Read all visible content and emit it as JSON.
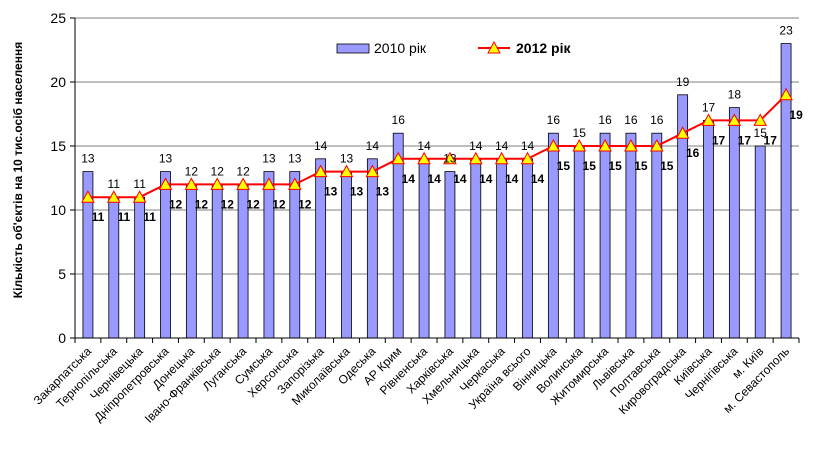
{
  "chart_data": {
    "type": "bar",
    "ylabel": "Кількість об'єктів на 10 тис.осіб населення",
    "ylim": [
      0,
      25
    ],
    "yticks": [
      0,
      5,
      10,
      15,
      20,
      25
    ],
    "grid": true,
    "legend_position": "top",
    "categories": [
      "Закарпатська",
      "Тернопільська",
      "Чернівецька",
      "Дніпропетровська",
      "Донецька",
      "Івано-Франківська",
      "Луганська",
      "Сумська",
      "Херсонська",
      "Запорізька",
      "Миколаївська",
      "Одеська",
      "АР Крим",
      "Рівненська",
      "Харківська",
      "Хмельницька",
      "Черкаська",
      "Україна всього",
      "Вінницька",
      "Волинська",
      "Житомирська",
      "Львівська",
      "Полтавська",
      "Кировоградська",
      "Київська",
      "Чернігівська",
      "м. Київ",
      "м. Севастополь"
    ],
    "series": [
      {
        "name": "2010 рік",
        "type": "bar",
        "color": "#9999ff",
        "values": [
          13,
          11,
          11,
          13,
          12,
          12,
          12,
          13,
          13,
          14,
          13,
          14,
          16,
          14,
          13,
          14,
          14,
          14,
          16,
          15,
          16,
          16,
          16,
          19,
          17,
          18,
          15,
          23
        ]
      },
      {
        "name": "2012 рік",
        "type": "line",
        "color": "#ff0000",
        "marker_color": "#ffff00",
        "values": [
          11,
          11,
          11,
          12,
          12,
          12,
          12,
          12,
          12,
          13,
          13,
          13,
          14,
          14,
          14,
          14,
          14,
          14,
          15,
          15,
          15,
          15,
          15,
          16,
          17,
          17,
          17,
          19
        ]
      }
    ]
  }
}
